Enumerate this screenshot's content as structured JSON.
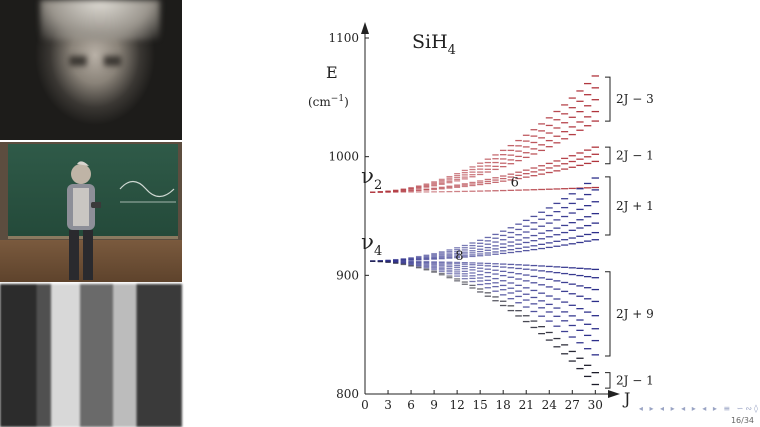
{
  "slide": {
    "page_number": "16/34",
    "nav_glyphs": "◂ ▸ ◂ ▸ ◂ ▸ ◂ ▸ ≡ ∽∾◊"
  },
  "chart_data": {
    "type": "line",
    "title": "SiH",
    "title_subscript": "4",
    "ylabel": "E",
    "yunit": "(cm",
    "yunit_sup": "−1",
    "yunit_close": ")",
    "xlabel": "J",
    "xlim": [
      0,
      31
    ],
    "ylim": [
      800,
      1100
    ],
    "x_ticks": [
      0,
      3,
      6,
      9,
      12,
      15,
      18,
      21,
      24,
      27,
      30
    ],
    "y_ticks": [
      800,
      900,
      1000,
      1100
    ],
    "colors": {
      "red": "#b0343c",
      "blue": "#2c2e8a",
      "dark": "#1c1c2a"
    },
    "annotations": [
      {
        "text": "ν",
        "sub": "2",
        "x": -0.5,
        "y": 978
      },
      {
        "text": "ν",
        "sub": "4",
        "x": -0.5,
        "y": 922
      },
      {
        "text": "6",
        "x": 19.5,
        "y": 975
      },
      {
        "text": "8",
        "x": 12.3,
        "y": 913
      }
    ],
    "brackets": [
      {
        "label": "2J − 3",
        "y_top": 1067,
        "y_bot": 1030
      },
      {
        "label": "2J − 1",
        "y_top": 1008,
        "y_bot": 994
      },
      {
        "label": "2J + 1",
        "y_top": 983,
        "y_bot": 934
      },
      {
        "label": "2J + 9",
        "y_top": 903,
        "y_bot": 832
      },
      {
        "label": "2J − 1",
        "y_top": 818,
        "y_bot": 805
      }
    ],
    "series": [
      {
        "origin": 970,
        "end": 1068,
        "color": "red"
      },
      {
        "origin": 970,
        "end": 1058,
        "color": "red"
      },
      {
        "origin": 970,
        "end": 1048,
        "color": "red"
      },
      {
        "origin": 970,
        "end": 1038,
        "color": "red"
      },
      {
        "origin": 970,
        "end": 1030,
        "color": "red"
      },
      {
        "origin": 970,
        "end": 1008,
        "color": "red"
      },
      {
        "origin": 970,
        "end": 1002,
        "color": "red"
      },
      {
        "origin": 970,
        "end": 996,
        "color": "red"
      },
      {
        "origin": 970,
        "end": 974,
        "color": "red"
      },
      {
        "origin": 912,
        "end": 982,
        "color": "blue"
      },
      {
        "origin": 912,
        "end": 972,
        "color": "blue"
      },
      {
        "origin": 912,
        "end": 962,
        "color": "blue"
      },
      {
        "origin": 912,
        "end": 952,
        "color": "blue"
      },
      {
        "origin": 912,
        "end": 944,
        "color": "blue"
      },
      {
        "origin": 912,
        "end": 936,
        "color": "blue"
      },
      {
        "origin": 912,
        "end": 930,
        "color": "blue"
      },
      {
        "origin": 912,
        "end": 905,
        "color": "blue"
      },
      {
        "origin": 912,
        "end": 898,
        "color": "blue"
      },
      {
        "origin": 912,
        "end": 888,
        "color": "blue"
      },
      {
        "origin": 912,
        "end": 878,
        "color": "blue"
      },
      {
        "origin": 912,
        "end": 866,
        "color": "blue"
      },
      {
        "origin": 912,
        "end": 855,
        "color": "blue"
      },
      {
        "origin": 912,
        "end": 845,
        "color": "blue"
      },
      {
        "origin": 912,
        "end": 833,
        "color": "blue"
      },
      {
        "origin": 912,
        "end": 818,
        "color": "dark"
      },
      {
        "origin": 912,
        "end": 808,
        "color": "dark"
      }
    ]
  }
}
